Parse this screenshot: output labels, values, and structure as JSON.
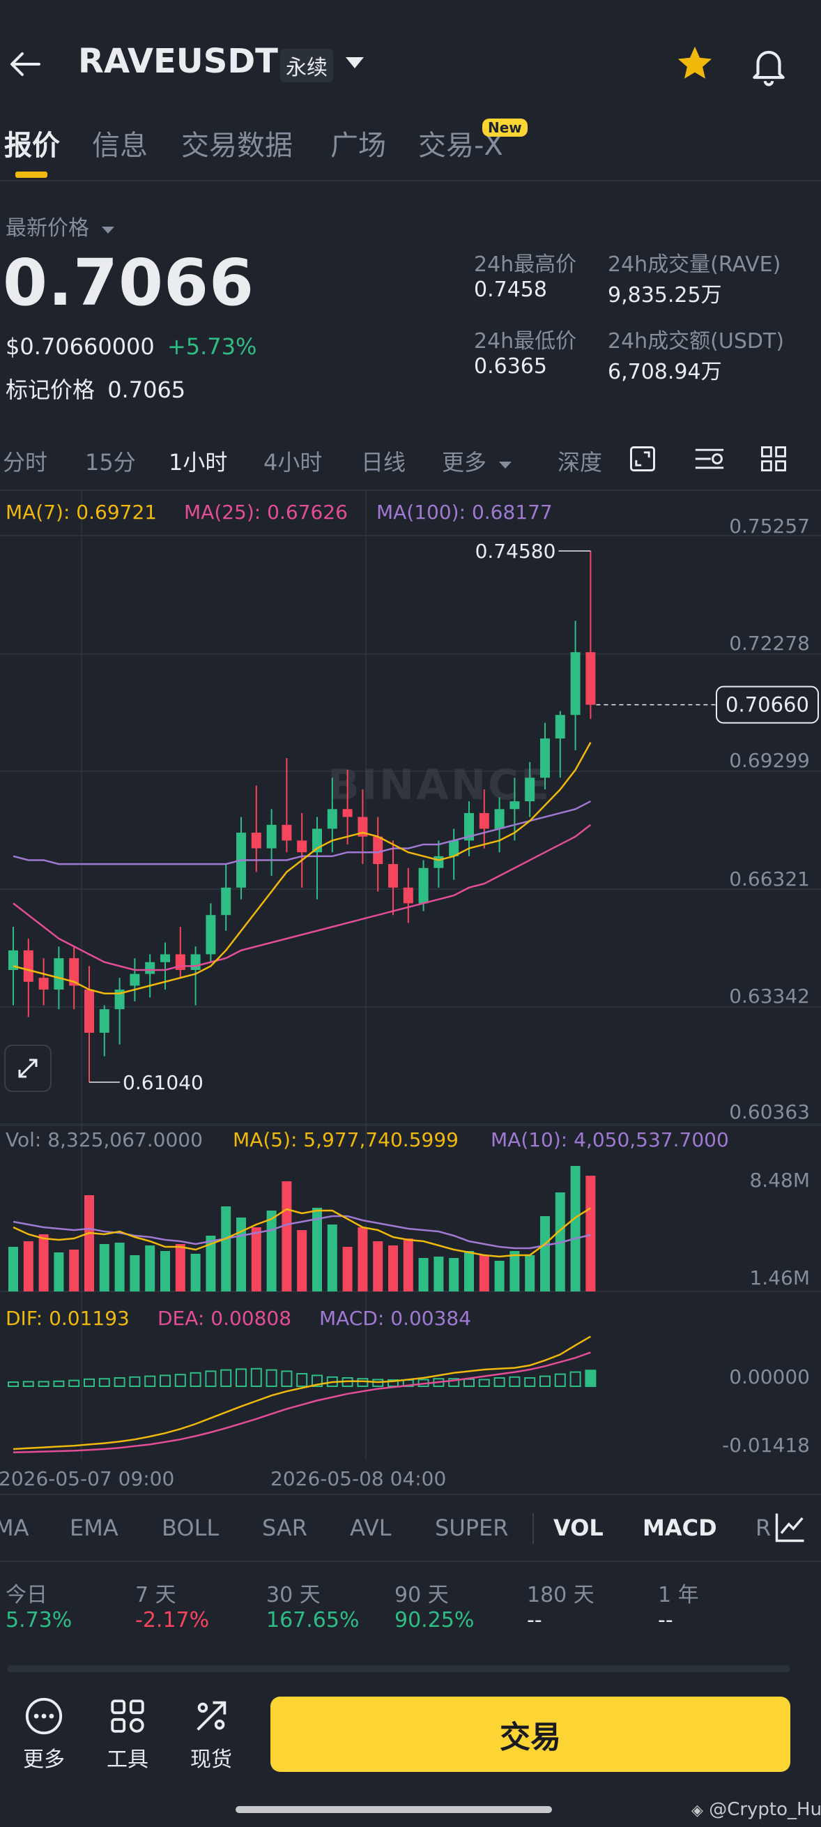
{
  "header": {
    "symbol": "RAVEUSDT",
    "contract_type": "永续"
  },
  "tabs": [
    {
      "label": "报价",
      "active": true
    },
    {
      "label": "信息"
    },
    {
      "label": "交易数据"
    },
    {
      "label": "广场"
    },
    {
      "label": "交易-X",
      "badge": "New"
    }
  ],
  "price": {
    "label": "最新价格",
    "last": "0.7066",
    "usd": "$0.70660000",
    "change": "+5.73%",
    "mark_label": "标记价格",
    "mark": "0.7065"
  },
  "stats": {
    "high_label": "24h最高价",
    "high": "0.7458",
    "low_label": "24h最低价",
    "low": "0.6365",
    "vol_base_label": "24h成交量(RAVE)",
    "vol_base": "9,835.25万",
    "vol_quote_label": "24h成交额(USDT)",
    "vol_quote": "6,708.94万"
  },
  "intervals": [
    "分时",
    "15分",
    "1小时",
    "4小时",
    "日线",
    "更多",
    "深度"
  ],
  "active_interval": "1小时",
  "ma_legend": {
    "ma7": "MA(7): 0.69721",
    "ma25": "MA(25): 0.67626",
    "ma100": "MA(100): 0.68177"
  },
  "vol_legend": {
    "vol": "Vol: 8,325,067.0000",
    "ma5": "MA(5): 5,977,740.5999",
    "ma10": "MA(10): 4,050,537.7000"
  },
  "macd_legend": {
    "dif": "DIF: 0.01193",
    "dea": "DEA: 0.00808",
    "macd": "MACD: 0.00384"
  },
  "time_axis": [
    "2026-05-07 09:00",
    "2026-05-08 04:00"
  ],
  "watermark": "BINANCE",
  "indicators": [
    "MA",
    "EMA",
    "BOLL",
    "SAR",
    "AVL",
    "SUPER",
    "VOL",
    "MACD",
    "R"
  ],
  "performance": [
    {
      "label": "今日",
      "value": "5.73%"
    },
    {
      "label": "7 天",
      "value": "-2.17%"
    },
    {
      "label": "30 天",
      "value": "167.65%"
    },
    {
      "label": "90 天",
      "value": "90.25%"
    },
    {
      "label": "180 天",
      "value": "--"
    },
    {
      "label": "1 年",
      "value": "--"
    }
  ],
  "bottom_nav": {
    "more": "更多",
    "tools": "工具",
    "spot": "现货",
    "trade": "交易"
  },
  "footer_watermark": "@Crypto_Hu",
  "chart_data": {
    "type": "candlestick",
    "interval": "1小时",
    "price_axis": [
      "0.75257",
      "0.72278",
      "0.69299",
      "0.66321",
      "0.63342",
      "0.60363"
    ],
    "ylim": [
      0.60363,
      0.75257
    ],
    "last_price_tag": "0.70660",
    "high_marker": "0.74580",
    "low_marker": "0.61040",
    "candles": [
      {
        "o": 0.639,
        "h": 0.65,
        "l": 0.63,
        "c": 0.644
      },
      {
        "o": 0.644,
        "h": 0.647,
        "l": 0.627,
        "c": 0.636
      },
      {
        "o": 0.637,
        "h": 0.642,
        "l": 0.63,
        "c": 0.634
      },
      {
        "o": 0.634,
        "h": 0.645,
        "l": 0.629,
        "c": 0.642
      },
      {
        "o": 0.642,
        "h": 0.645,
        "l": 0.629,
        "c": 0.635
      },
      {
        "o": 0.634,
        "h": 0.64,
        "l": 0.6104,
        "c": 0.623
      },
      {
        "o": 0.623,
        "h": 0.63,
        "l": 0.617,
        "c": 0.629
      },
      {
        "o": 0.629,
        "h": 0.637,
        "l": 0.62,
        "c": 0.634
      },
      {
        "o": 0.635,
        "h": 0.642,
        "l": 0.631,
        "c": 0.638
      },
      {
        "o": 0.638,
        "h": 0.643,
        "l": 0.632,
        "c": 0.641
      },
      {
        "o": 0.641,
        "h": 0.646,
        "l": 0.634,
        "c": 0.643
      },
      {
        "o": 0.643,
        "h": 0.65,
        "l": 0.637,
        "c": 0.639
      },
      {
        "o": 0.639,
        "h": 0.645,
        "l": 0.63,
        "c": 0.643
      },
      {
        "o": 0.643,
        "h": 0.656,
        "l": 0.641,
        "c": 0.653
      },
      {
        "o": 0.653,
        "h": 0.666,
        "l": 0.649,
        "c": 0.66
      },
      {
        "o": 0.66,
        "h": 0.678,
        "l": 0.657,
        "c": 0.674
      },
      {
        "o": 0.674,
        "h": 0.686,
        "l": 0.664,
        "c": 0.67
      },
      {
        "o": 0.67,
        "h": 0.68,
        "l": 0.663,
        "c": 0.676
      },
      {
        "o": 0.676,
        "h": 0.693,
        "l": 0.669,
        "c": 0.672
      },
      {
        "o": 0.672,
        "h": 0.679,
        "l": 0.66,
        "c": 0.669
      },
      {
        "o": 0.669,
        "h": 0.678,
        "l": 0.657,
        "c": 0.675
      },
      {
        "o": 0.675,
        "h": 0.688,
        "l": 0.669,
        "c": 0.68
      },
      {
        "o": 0.68,
        "h": 0.69,
        "l": 0.671,
        "c": 0.678
      },
      {
        "o": 0.678,
        "h": 0.685,
        "l": 0.666,
        "c": 0.673
      },
      {
        "o": 0.673,
        "h": 0.678,
        "l": 0.659,
        "c": 0.666
      },
      {
        "o": 0.666,
        "h": 0.672,
        "l": 0.653,
        "c": 0.66
      },
      {
        "o": 0.66,
        "h": 0.665,
        "l": 0.651,
        "c": 0.656
      },
      {
        "o": 0.656,
        "h": 0.667,
        "l": 0.654,
        "c": 0.665
      },
      {
        "o": 0.665,
        "h": 0.672,
        "l": 0.66,
        "c": 0.668
      },
      {
        "o": 0.668,
        "h": 0.675,
        "l": 0.662,
        "c": 0.672
      },
      {
        "o": 0.672,
        "h": 0.682,
        "l": 0.668,
        "c": 0.679
      },
      {
        "o": 0.679,
        "h": 0.685,
        "l": 0.67,
        "c": 0.675
      },
      {
        "o": 0.675,
        "h": 0.683,
        "l": 0.669,
        "c": 0.68
      },
      {
        "o": 0.68,
        "h": 0.688,
        "l": 0.672,
        "c": 0.682
      },
      {
        "o": 0.682,
        "h": 0.692,
        "l": 0.678,
        "c": 0.688
      },
      {
        "o": 0.688,
        "h": 0.702,
        "l": 0.685,
        "c": 0.698
      },
      {
        "o": 0.698,
        "h": 0.705,
        "l": 0.688,
        "c": 0.704
      },
      {
        "o": 0.704,
        "h": 0.728,
        "l": 0.695,
        "c": 0.72
      },
      {
        "o": 0.72,
        "h": 0.7458,
        "l": 0.703,
        "c": 0.7066
      }
    ],
    "ma7": [
      0.64,
      0.639,
      0.638,
      0.637,
      0.636,
      0.634,
      0.633,
      0.633,
      0.634,
      0.635,
      0.636,
      0.637,
      0.638,
      0.64,
      0.644,
      0.649,
      0.654,
      0.659,
      0.664,
      0.667,
      0.67,
      0.672,
      0.673,
      0.674,
      0.673,
      0.671,
      0.669,
      0.668,
      0.667,
      0.668,
      0.67,
      0.671,
      0.672,
      0.674,
      0.677,
      0.681,
      0.685,
      0.69,
      0.697
    ],
    "ma25": [
      0.656,
      0.653,
      0.65,
      0.647,
      0.645,
      0.643,
      0.641,
      0.64,
      0.639,
      0.639,
      0.639,
      0.64,
      0.64,
      0.641,
      0.642,
      0.644,
      0.645,
      0.646,
      0.647,
      0.648,
      0.649,
      0.65,
      0.651,
      0.652,
      0.653,
      0.654,
      0.655,
      0.656,
      0.657,
      0.658,
      0.66,
      0.661,
      0.663,
      0.665,
      0.667,
      0.669,
      0.671,
      0.673,
      0.676
    ],
    "ma100": [
      0.668,
      0.667,
      0.667,
      0.666,
      0.666,
      0.666,
      0.666,
      0.666,
      0.666,
      0.666,
      0.666,
      0.666,
      0.666,
      0.666,
      0.666,
      0.667,
      0.667,
      0.667,
      0.667,
      0.668,
      0.668,
      0.668,
      0.669,
      0.669,
      0.669,
      0.67,
      0.67,
      0.671,
      0.671,
      0.672,
      0.673,
      0.674,
      0.675,
      0.676,
      0.677,
      0.678,
      0.679,
      0.68,
      0.682
    ],
    "volume_axis": [
      "8.48M",
      "1.46M"
    ],
    "volume": [
      3.2,
      3.6,
      4.1,
      2.8,
      3.0,
      6.9,
      3.4,
      3.5,
      2.6,
      3.3,
      2.9,
      3.4,
      2.7,
      4.0,
      6.1,
      5.3,
      4.6,
      5.8,
      7.9,
      4.4,
      6.0,
      4.8,
      3.2,
      4.6,
      3.6,
      3.3,
      3.8,
      2.4,
      2.5,
      2.4,
      2.9,
      2.6,
      2.2,
      2.9,
      2.6,
      5.4,
      7.1,
      9.0,
      8.3
    ],
    "volume_ma5": [
      4.6,
      4.1,
      3.8,
      3.7,
      3.8,
      4.2,
      4.1,
      4.3,
      3.9,
      3.6,
      3.2,
      3.2,
      3.0,
      3.4,
      3.8,
      4.3,
      4.8,
      5.2,
      5.9,
      5.6,
      5.8,
      5.8,
      5.2,
      4.6,
      4.4,
      3.9,
      3.7,
      3.6,
      3.3,
      3.0,
      2.8,
      2.6,
      2.5,
      2.6,
      2.6,
      3.4,
      4.4,
      5.3,
      5.98
    ],
    "volume_ma10": [
      5.0,
      4.8,
      4.6,
      4.5,
      4.4,
      4.5,
      4.3,
      4.2,
      4.0,
      3.9,
      3.7,
      3.6,
      3.4,
      3.6,
      3.8,
      4.0,
      4.2,
      4.4,
      4.8,
      5.0,
      5.2,
      5.4,
      5.4,
      5.1,
      4.9,
      4.7,
      4.5,
      4.4,
      4.3,
      4.0,
      3.6,
      3.4,
      3.2,
      3.1,
      3.1,
      3.3,
      3.5,
      3.8,
      4.05
    ],
    "macd_axis": [
      "0.00000",
      "-0.01418"
    ],
    "macd_hist": [
      0.001,
      0.0011,
      0.0011,
      0.0012,
      0.0014,
      0.0017,
      0.0018,
      0.002,
      0.0022,
      0.0024,
      0.0026,
      0.0028,
      0.0032,
      0.0036,
      0.0039,
      0.0041,
      0.0042,
      0.0039,
      0.0036,
      0.003,
      0.0026,
      0.0022,
      0.002,
      0.0018,
      0.0016,
      0.0015,
      0.0015,
      0.0016,
      0.0018,
      0.0018,
      0.0017,
      0.0016,
      0.002,
      0.0022,
      0.002,
      0.0024,
      0.0029,
      0.0034,
      0.0038
    ],
    "macd_dif": [
      -0.015,
      -0.0148,
      -0.0146,
      -0.0144,
      -0.0142,
      -0.0139,
      -0.0136,
      -0.0132,
      -0.0127,
      -0.012,
      -0.0112,
      -0.0102,
      -0.009,
      -0.0076,
      -0.0062,
      -0.0048,
      -0.0035,
      -0.0022,
      -0.0012,
      -0.0004,
      0.0004,
      0.001,
      0.0012,
      0.0012,
      0.001,
      0.0012,
      0.0016,
      0.002,
      0.0026,
      0.0032,
      0.0036,
      0.004,
      0.0042,
      0.0044,
      0.005,
      0.0062,
      0.0076,
      0.0098,
      0.0119
    ],
    "macd_dea": [
      -0.0158,
      -0.0157,
      -0.0156,
      -0.0155,
      -0.0154,
      -0.0152,
      -0.015,
      -0.0147,
      -0.0143,
      -0.0139,
      -0.0133,
      -0.0127,
      -0.0119,
      -0.011,
      -0.01,
      -0.0089,
      -0.0078,
      -0.0066,
      -0.0054,
      -0.0044,
      -0.0034,
      -0.0026,
      -0.0018,
      -0.0012,
      -0.0006,
      -0.0002,
      0.0002,
      0.0006,
      0.001,
      0.0014,
      0.0019,
      0.0024,
      0.0029,
      0.0034,
      0.004,
      0.0048,
      0.0058,
      0.0068,
      0.0081
    ]
  },
  "colors": {
    "up": "#2ebd85",
    "down": "#f6465d",
    "ma7": "#f0b90b",
    "ma25": "#e44d97",
    "ma100": "#a07ad2",
    "accent": "#fcd535"
  }
}
